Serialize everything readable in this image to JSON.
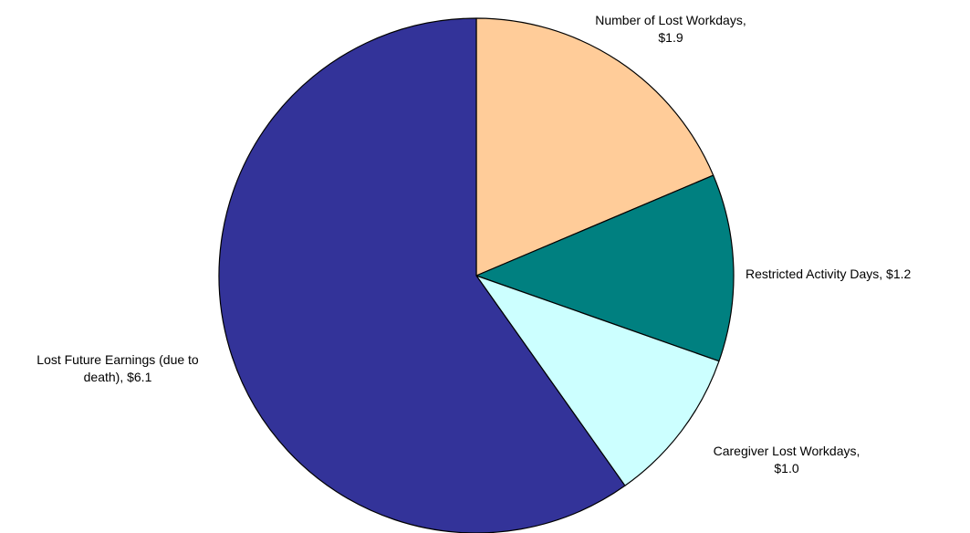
{
  "chart_data": {
    "type": "pie",
    "title": "",
    "start_angle_deg": 0,
    "direction": "clockwise",
    "slices": [
      {
        "label": "Number of Lost Workdays",
        "value": 1.9,
        "value_text": "$1.9",
        "label_lines": [
          "Number of Lost Workdays,",
          "$1.9"
        ],
        "color": "#FFCC99"
      },
      {
        "label": "Restricted Activity Days",
        "value": 1.2,
        "value_text": "$1.2",
        "label_lines": [
          "Restricted Activity Days,  $1.2"
        ],
        "color": "#008080"
      },
      {
        "label": "Caregiver Lost Workdays",
        "value": 1.0,
        "value_text": "$1.0",
        "label_lines": [
          "Caregiver Lost Workdays,",
          "$1.0"
        ],
        "color": "#CCFFFF"
      },
      {
        "label": "Lost Future Earnings (due to death)",
        "value": 6.1,
        "value_text": "$6.1",
        "label_lines": [
          "Lost Future Earnings (due to",
          "death),  $6.1"
        ],
        "color": "#333399"
      }
    ]
  }
}
